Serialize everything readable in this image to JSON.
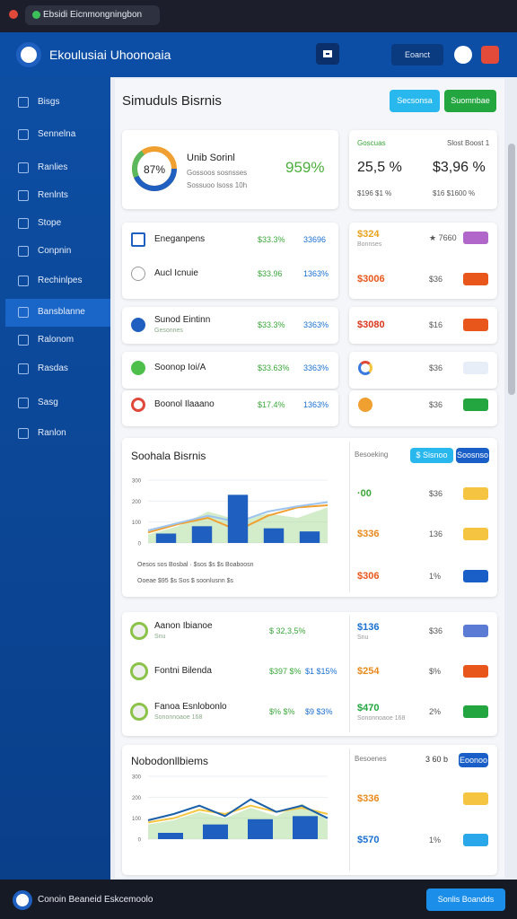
{
  "browser": {
    "tab": "Ebsidi Eicnmongningbon"
  },
  "header": {
    "title": "Ekoulusiai Uhoonoaia",
    "button": "Eoanct"
  },
  "sidebar": {
    "items": [
      "Bisgs",
      "Sennelna",
      "Ranlies",
      "Renlnts",
      "Stope",
      "Conpnin",
      "Rechinlpes",
      "Bansblanne",
      "Ralonom",
      "Rasdas",
      "Sasg",
      "Ranlon"
    ],
    "active": 7
  },
  "page": {
    "title": "Simuduls Bisrnis",
    "buttons": [
      "Secsonsa",
      "Suomnbae"
    ]
  },
  "summary": {
    "donut_label": "87%",
    "title": "Unib Sorinl",
    "lines": [
      "Gossoos sosnsses",
      "Sossuoo lsoss 10h"
    ],
    "value": "959%",
    "label": "Goscuas",
    "sub": "Slost Boost 1",
    "value1": "25,5 %",
    "value2": "$3,96 %",
    "note1": "$196 $1 %",
    "note2": "$16 $1600 %"
  },
  "rows": [
    {
      "name": "Eneganpens",
      "v1": "$33.3%",
      "v2": "33696",
      "icon": "square"
    },
    {
      "name": "Aucl Icnuie",
      "v1": "$33.96",
      "v2": "1363%",
      "icon": "circle"
    },
    {
      "name": "Sunod Eintinn",
      "sub": "Gesonnes",
      "v1": "$33.3%",
      "v2": "3363%",
      "icon": "blue"
    },
    {
      "name": "Soonop Ioi/A",
      "v1": "$33.63%",
      "v2": "3363%",
      "icon": "green"
    },
    {
      "name": "Boonol Ilaaano",
      "v1": "$17.4%",
      "v2": "1363%",
      "icon": "ring"
    }
  ],
  "side_rows": [
    {
      "price": "$324",
      "price_color": "#e8a21c",
      "sub": "Bonnses",
      "mid": "★ 7660",
      "badge": "#b166c9"
    },
    {
      "price": "$3006",
      "price_color": "#e8561c",
      "mid": "$36",
      "badge": "#e8561c"
    },
    {
      "price": "$3080",
      "price_color": "#d9361c",
      "mid": "$16",
      "badge": "#e8561c"
    },
    {
      "icon": "google",
      "mid": "$36",
      "badge": "#e8eef7"
    },
    {
      "icon": "orange",
      "mid": "$36",
      "badge": "#23a640"
    }
  ],
  "section1": {
    "title": "Soohala Bisrnis",
    "label": "Besoeking",
    "buttons": [
      "$ Sisnoo",
      "Soosnso"
    ],
    "legend": [
      "Oesos sos  Bosbal  ·  $sos $s $s Boaboosn",
      "Ooeae $95  $s  Sos $ soonlusnn $s"
    ],
    "rows": [
      {
        "price": "·00",
        "price_color": "#3aa63a",
        "mid": "$36",
        "badge": "#f5c542"
      },
      {
        "price": "$336",
        "price_color": "#e8891c",
        "mid": "136",
        "badge": "#f5c542"
      },
      {
        "price": "$306",
        "price_color": "#e8561c",
        "mid": "1%",
        "badge": "#1a5fc8"
      }
    ]
  },
  "list2": [
    {
      "name": "Aanon Ibianoe",
      "sub": "Snu",
      "v1": "$ 32,3,5%",
      "price": "$136",
      "price_color": "#1a6fd0",
      "mid": "$36",
      "badge": "#5b7bd5"
    },
    {
      "name": "Fontni Bilenda",
      "v1": "$397 $%",
      "v2": "$1 $15%",
      "price": "$254",
      "price_color": "#e8891c",
      "mid": "$%",
      "badge": "#e8561c"
    },
    {
      "name": "Fanoa Esnlobonlo",
      "sub": "Sononnoaoe 168",
      "v1": "$% $%",
      "v2": "$9 $3%",
      "price": "$470",
      "price_color": "#23a640",
      "mid": "2%",
      "badge": "#23a640"
    }
  ],
  "section2": {
    "title": "Nobodonllbiems",
    "label": "Besoenes",
    "note": "3 60 b",
    "button": "Eoonoo",
    "rows": [
      {
        "price": "$336",
        "price_color": "#e8891c",
        "badge": "#f5c542"
      },
      {
        "price": "$570",
        "price_color": "#1a6fd0",
        "mid": "1%",
        "badge": "#2aa7e8"
      }
    ]
  },
  "footer": {
    "text": "Conoin Beaneid Eskcemoolo",
    "button": "Sonlis Boandds"
  },
  "chart_data": [
    {
      "type": "bar",
      "values": [
        45,
        80,
        230,
        70,
        55
      ],
      "color": "#1f5fbf",
      "ylim": [
        0,
        300
      ],
      "yticks": [
        0,
        100,
        200,
        300
      ],
      "lines": [
        {
          "color": "#9ed48a",
          "area": true,
          "values": [
            40,
            80,
            150,
            110,
            140,
            120,
            170
          ]
        },
        {
          "color": "#f0a030",
          "values": [
            50,
            90,
            120,
            60,
            130,
            170,
            180
          ]
        },
        {
          "color": "#9cc4ee",
          "values": [
            60,
            95,
            130,
            100,
            150,
            175,
            195
          ]
        }
      ]
    },
    {
      "type": "bar",
      "values": [
        30,
        70,
        95,
        110
      ],
      "color": "#1f5fbf",
      "ylim": [
        0,
        300
      ],
      "yticks": [
        0,
        100,
        200,
        300
      ],
      "lines": [
        {
          "color": "#9ed48a",
          "area": true,
          "values": [
            70,
            90,
            130,
            100,
            150,
            110,
            170,
            90
          ]
        },
        {
          "color": "#f5c542",
          "values": [
            80,
            100,
            140,
            120,
            160,
            130,
            150,
            120
          ]
        },
        {
          "color": "#1a5fa8",
          "values": [
            90,
            120,
            160,
            110,
            190,
            130,
            160,
            100
          ]
        }
      ]
    }
  ]
}
